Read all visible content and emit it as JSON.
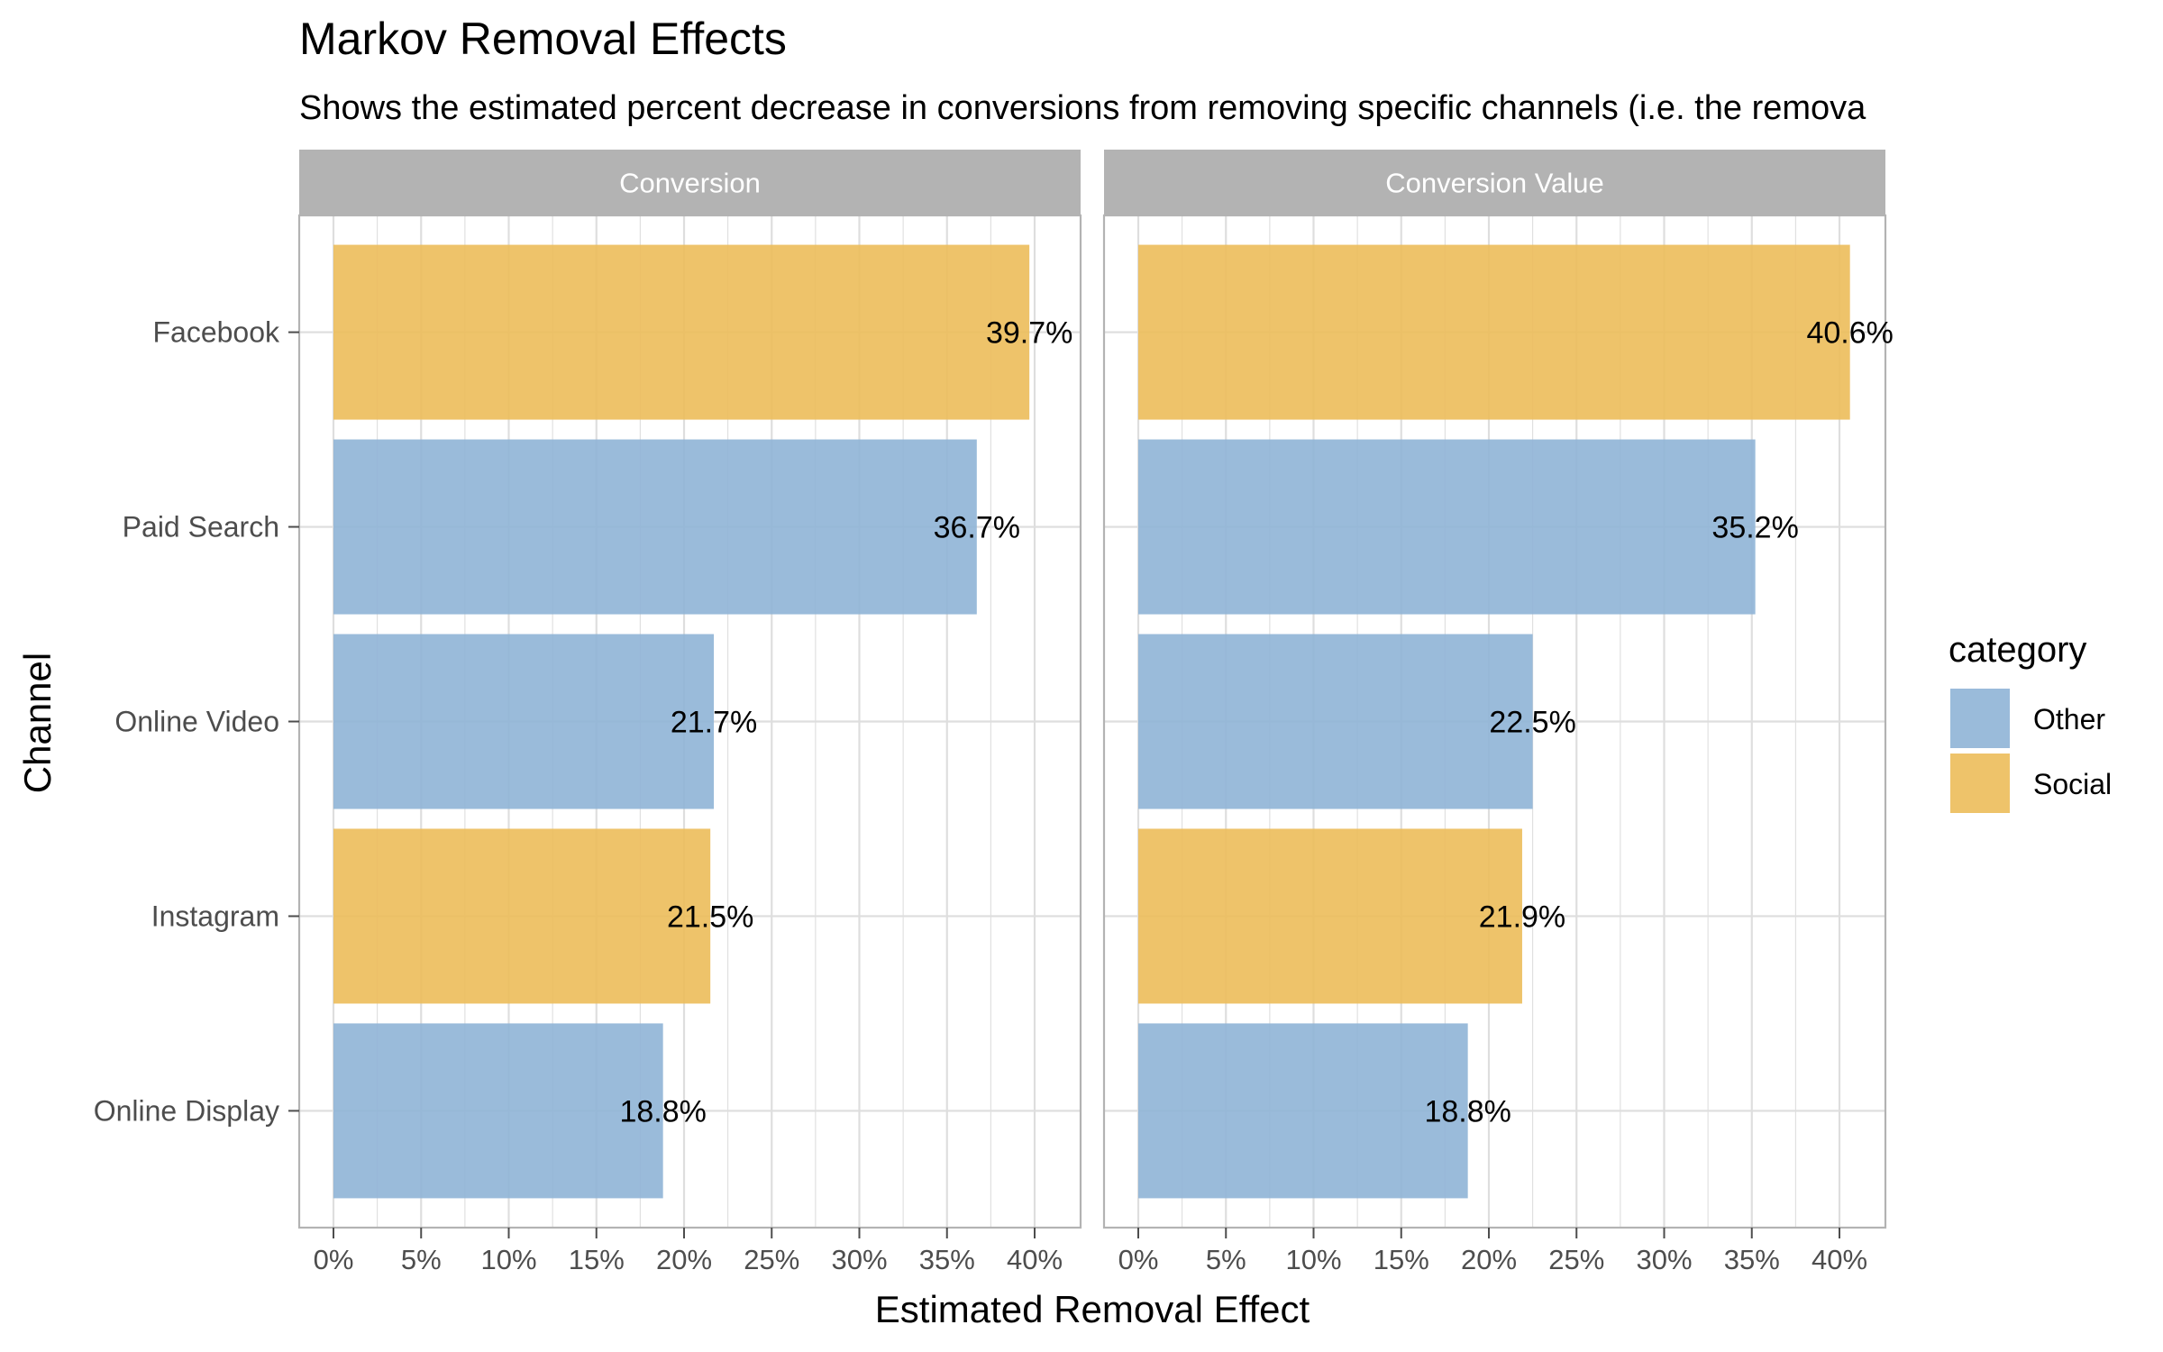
{
  "chart_data": {
    "type": "bar",
    "orientation": "horizontal",
    "title": "Markov Removal Effects",
    "subtitle": "Shows the estimated percent decrease in conversions from removing specific channels (i.e. the remova",
    "xlabel": "Estimated Removal Effect",
    "ylabel": "Channel",
    "categories": [
      "Facebook",
      "Paid Search",
      "Online Video",
      "Instagram",
      "Online Display"
    ],
    "category_group": [
      "Social",
      "Other",
      "Other",
      "Social",
      "Other"
    ],
    "xlim": [
      0,
      0.42
    ],
    "x_ticks": [
      0,
      0.05,
      0.1,
      0.15,
      0.2,
      0.25,
      0.3,
      0.35,
      0.4
    ],
    "x_tick_labels": [
      "0%",
      "5%",
      "10%",
      "15%",
      "20%",
      "25%",
      "30%",
      "35%",
      "40%"
    ],
    "grid": true,
    "panels": [
      {
        "name": "Conversion",
        "values": [
          0.397,
          0.367,
          0.217,
          0.215,
          0.188
        ],
        "labels": [
          "39.7%",
          "36.7%",
          "21.7%",
          "21.5%",
          "18.8%"
        ]
      },
      {
        "name": "Conversion Value",
        "values": [
          0.406,
          0.352,
          0.225,
          0.219,
          0.188
        ],
        "labels": [
          "40.6%",
          "35.2%",
          "22.5%",
          "21.9%",
          "18.8%"
        ]
      }
    ],
    "legend": {
      "title": "category",
      "placement": "right",
      "items": [
        {
          "name": "Other",
          "color": "#8fb4d6"
        },
        {
          "name": "Social",
          "color": "#ecbc5a"
        }
      ]
    },
    "colors": {
      "Other": "#8fb4d6",
      "Social": "#ecbc5a",
      "strip_background": "#b3b3b3",
      "grid": "#dedede",
      "panel_border": "#b3b3b3"
    }
  }
}
